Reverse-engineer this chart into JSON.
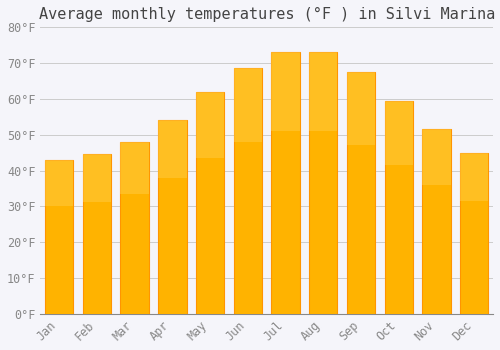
{
  "title": "Average monthly temperatures (°F ) in Silvi Marina",
  "months": [
    "Jan",
    "Feb",
    "Mar",
    "Apr",
    "May",
    "Jun",
    "Jul",
    "Aug",
    "Sep",
    "Oct",
    "Nov",
    "Dec"
  ],
  "values": [
    43.0,
    44.5,
    48.0,
    54.0,
    62.0,
    68.5,
    73.0,
    73.0,
    67.5,
    59.5,
    51.5,
    45.0
  ],
  "bar_color_face": "#FFB300",
  "bar_color_edge": "#FF9500",
  "ylim": [
    0,
    80
  ],
  "ytick_step": 10,
  "background_color": "#F5F5FA",
  "grid_color": "#CCCCCC",
  "title_fontsize": 11,
  "tick_fontsize": 8.5,
  "font_family": "monospace"
}
